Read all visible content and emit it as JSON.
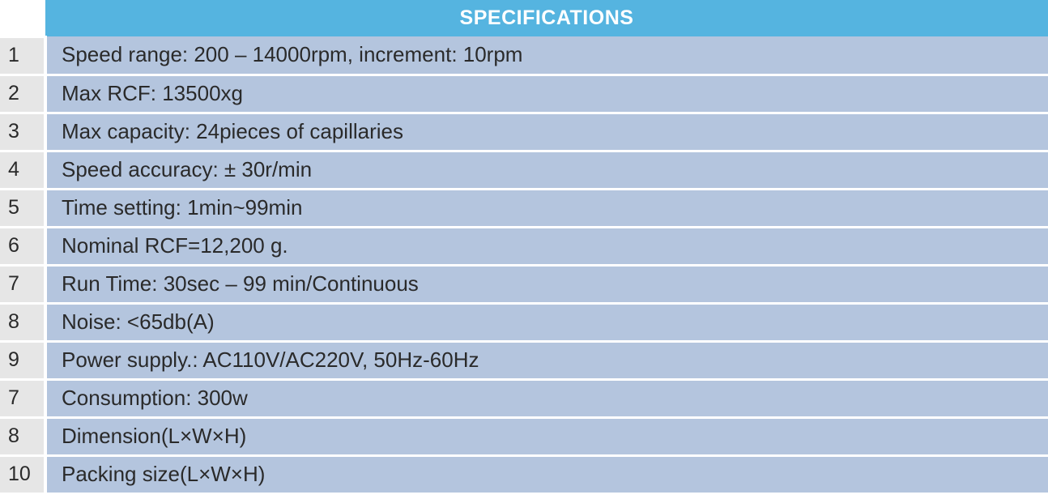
{
  "table": {
    "header_label": "SPECIFICATIONS",
    "header_bg_color": "#55b4e0",
    "header_text_color": "#ffffff",
    "header_fontsize": 25,
    "num_col_bg_color": "#e6e6e6",
    "spec_col_bg_color": "#b4c5de",
    "row_text_color": "#2a2a2a",
    "row_fontsize": 26,
    "border_color": "#ffffff",
    "num_col_width": 56,
    "rows": [
      {
        "num": "1",
        "spec": "Speed range: 200 – 14000rpm, increment: 10rpm"
      },
      {
        "num": "2",
        "spec": "Max RCF: 13500xg"
      },
      {
        "num": "3",
        "spec": "Max capacity: 24pieces of capillaries"
      },
      {
        "num": "4",
        "spec": "Speed accuracy: ± 30r/min"
      },
      {
        "num": "5",
        "spec": "Time setting: 1min~99min"
      },
      {
        "num": "6",
        "spec": "Nominal RCF=12,200 g."
      },
      {
        "num": "7",
        "spec": "Run Time: 30sec – 99 min/Continuous"
      },
      {
        "num": "8",
        "spec": "Noise: <65db(A)"
      },
      {
        "num": "9",
        "spec": "Power supply.: AC110V/AC220V, 50Hz-60Hz"
      },
      {
        "num": "7",
        "spec": "Consumption: 300w"
      },
      {
        "num": "8",
        "spec": "Dimension(L×W×H)"
      },
      {
        "num": "10",
        "spec": "Packing size(L×W×H)"
      }
    ]
  }
}
